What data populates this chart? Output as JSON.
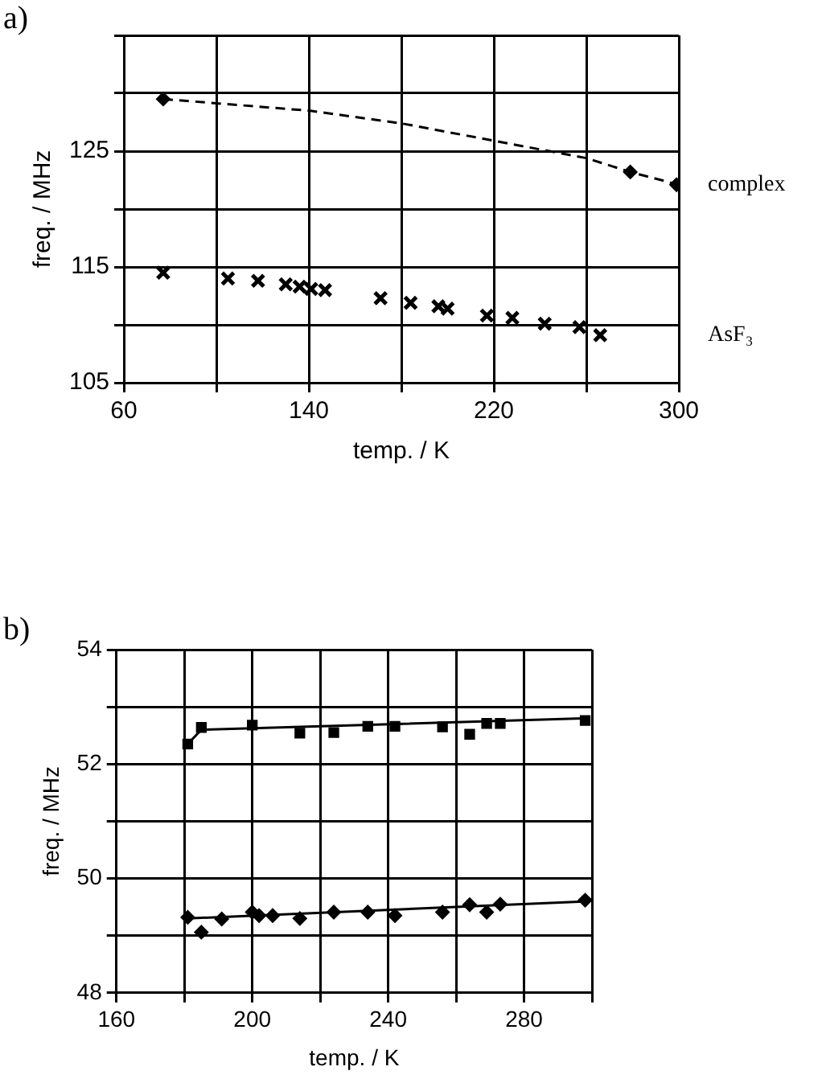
{
  "chart_data": [
    {
      "type": "scatter",
      "title": "a)",
      "xlabel": "temp. / K",
      "ylabel": "freq. / MHz",
      "xlim": [
        60,
        300
      ],
      "ylim": [
        105,
        135
      ],
      "xticks": [
        60,
        {
          "value": 100,
          "label": null
        },
        140,
        {
          "value": 180,
          "label": null
        },
        220,
        {
          "value": 260,
          "label": null
        },
        300
      ],
      "yticks": [
        105,
        {
          "value": 110,
          "label": null
        },
        115,
        {
          "value": 120,
          "label": null
        },
        125,
        {
          "value": 130,
          "label": null
        },
        {
          "value": 135,
          "label": null
        }
      ],
      "grid": true,
      "series": [
        {
          "type": "line",
          "line_style": "dashed",
          "marker": "none",
          "color": "#000000",
          "x": [
            77,
            140,
            180,
            220,
            260,
            279,
            300
          ],
          "values": [
            129.5,
            128.5,
            127.4,
            125.9,
            124.4,
            123.2,
            122.1
          ]
        },
        {
          "name": "complex",
          "marker": "diamond",
          "color": "#000000",
          "x": [
            77,
            279,
            299
          ],
          "values": [
            129.5,
            123.2,
            122.1
          ]
        },
        {
          "name": "AsF₃",
          "marker": "cross",
          "color": "#000000",
          "x": [
            77,
            105,
            118,
            130,
            136,
            141,
            147,
            171,
            184,
            196,
            200,
            217,
            228,
            242,
            257,
            266
          ],
          "values": [
            114.5,
            114.0,
            113.8,
            113.5,
            113.3,
            113.1,
            113.0,
            112.3,
            111.9,
            111.6,
            111.4,
            110.8,
            110.6,
            110.1,
            109.8,
            109.1
          ]
        }
      ]
    },
    {
      "type": "scatter",
      "title": "b)",
      "xlabel": "temp. / K",
      "ylabel": "freq. / MHz",
      "xlim": [
        160,
        300
      ],
      "ylim": [
        48,
        54
      ],
      "xticks": [
        160,
        {
          "value": 180,
          "label": null
        },
        200,
        {
          "value": 220,
          "label": null
        },
        240,
        {
          "value": 260,
          "label": null
        },
        280,
        {
          "value": 300,
          "label": null
        }
      ],
      "yticks": [
        48,
        {
          "value": 49,
          "label": null
        },
        50,
        {
          "value": 51,
          "label": null
        },
        52,
        {
          "value": 53,
          "label": null
        },
        54
      ],
      "grid": true,
      "series": [
        {
          "type": "line",
          "line_style": "solid",
          "marker": "none",
          "color": "#000000",
          "x": [
            181,
            185,
            299
          ],
          "values": [
            52.35,
            52.6,
            52.8
          ]
        },
        {
          "marker": "square",
          "color": "#000000",
          "x": [
            181,
            185,
            200,
            214,
            224,
            234,
            242,
            256,
            264,
            269,
            273,
            298
          ],
          "values": [
            52.35,
            52.64,
            52.68,
            52.54,
            52.55,
            52.66,
            52.66,
            52.65,
            52.52,
            52.71,
            52.71,
            52.76
          ]
        },
        {
          "type": "line",
          "line_style": "solid",
          "marker": "none",
          "color": "#000000",
          "x": [
            181,
            299
          ],
          "values": [
            49.3,
            49.6
          ]
        },
        {
          "marker": "diamond",
          "color": "#000000",
          "x": [
            181,
            185,
            191,
            200,
            202,
            206,
            214,
            224,
            234,
            242,
            256,
            264,
            269,
            273,
            298
          ],
          "values": [
            49.32,
            49.06,
            49.29,
            49.41,
            49.35,
            49.35,
            49.3,
            49.41,
            49.41,
            49.35,
            49.41,
            49.54,
            49.41,
            49.55,
            49.62
          ]
        }
      ]
    }
  ]
}
